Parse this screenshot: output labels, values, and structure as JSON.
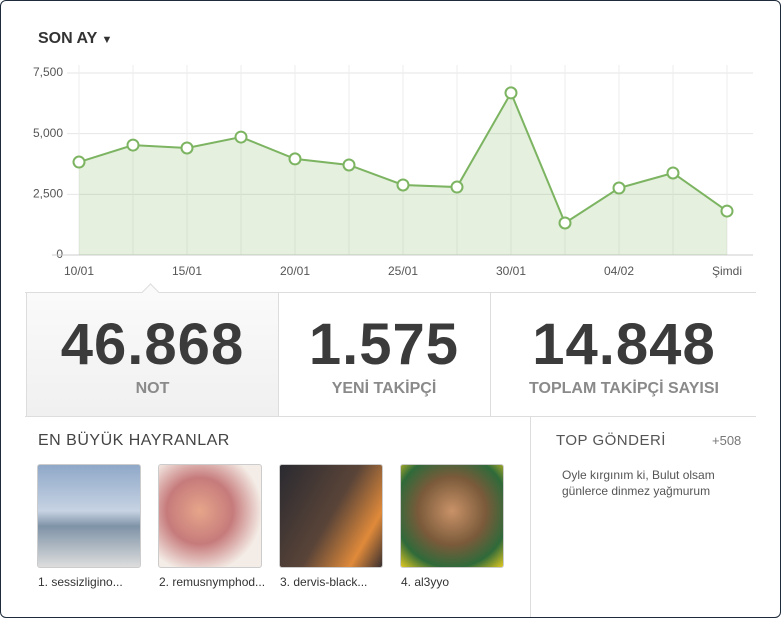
{
  "header": {
    "period": "SON AY"
  },
  "chart_data": {
    "type": "area",
    "categories": [
      "10/01",
      null,
      "15/01",
      null,
      "20/01",
      null,
      "25/01",
      null,
      "30/01",
      null,
      "04/02",
      null,
      "Şimdi"
    ],
    "values": [
      3830,
      4530,
      4410,
      4860,
      3960,
      3710,
      2885,
      2800,
      6680,
      1320,
      2760,
      3380,
      1810
    ],
    "color": "#7cb461",
    "ylim": [
      0,
      7500
    ],
    "yticks": [
      0,
      {
        "value": 2500,
        "label": "2,500"
      },
      {
        "value": 5000,
        "label": "5,000"
      },
      {
        "value": 7500,
        "label": "7,500"
      }
    ],
    "grid": true
  },
  "stats": [
    {
      "value": "46.868",
      "label": "NOT"
    },
    {
      "value": "1.575",
      "label": "YENİ TAKİPÇİ"
    },
    {
      "value": "14.848",
      "label": "TOPLAM TAKİPÇİ SAYISI"
    }
  ],
  "fans": {
    "title": "EN BÜYÜK HAYRANLAR",
    "items": [
      "1. sessizligino...",
      "2. remusnymphod...",
      "3. dervis-black...",
      "4. al3yyo"
    ]
  },
  "top_post": {
    "title": "TOP GÖNDERİ",
    "count": "+508",
    "text": "Oyle kırgınım ki, Bulut olsam günlerce dinmez yağmurum"
  }
}
